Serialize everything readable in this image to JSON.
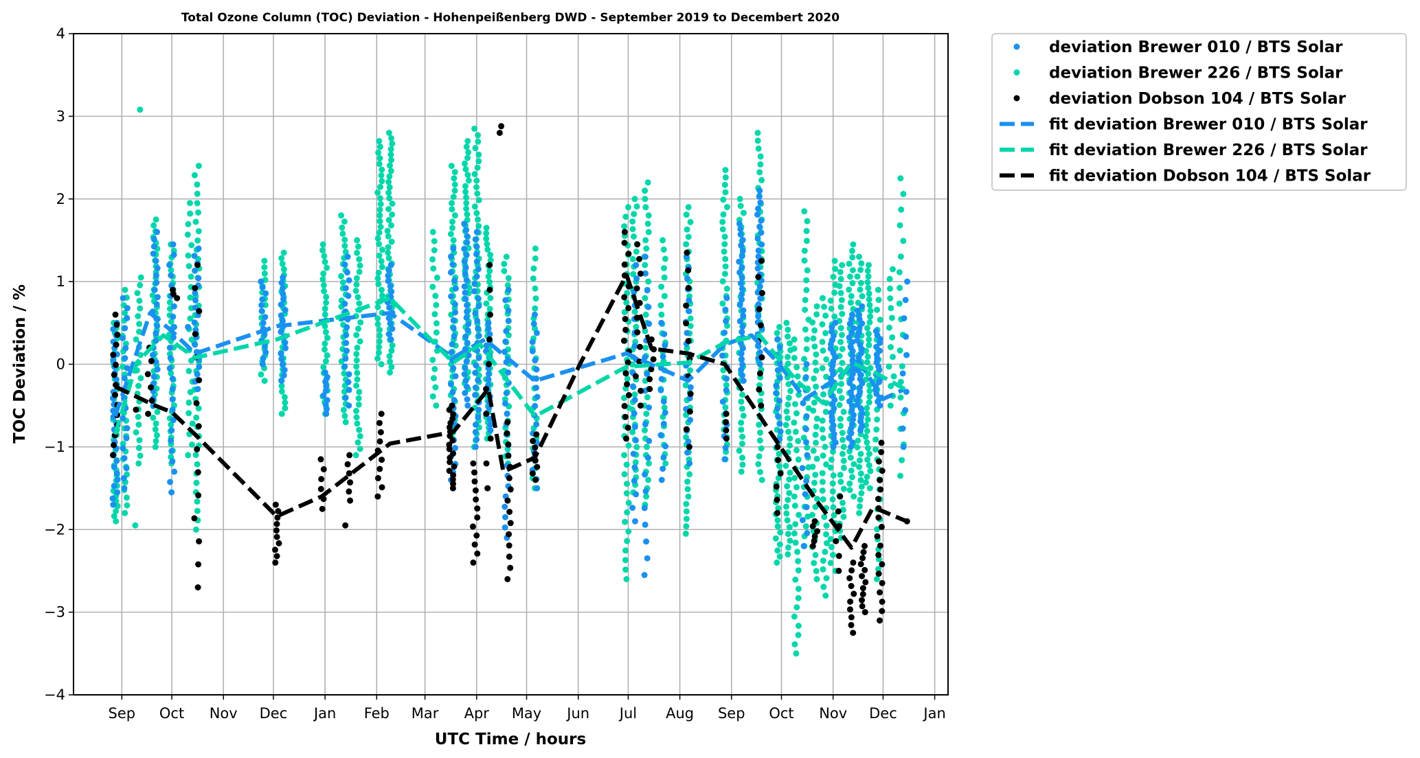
{
  "chart_data": {
    "type": "scatter",
    "title": "Total Ozone Column (TOC) Deviation - Hohenpeißenberg DWD - September 2019 to Decembert 2020",
    "xlabel": "UTC Time / hours",
    "ylabel": "TOC Deviation / %",
    "x_units": "days since 2019-09-01",
    "xlim": [
      -29,
      496
    ],
    "ylim": [
      -4,
      4
    ],
    "grid": true,
    "legend_position": "outside-top-right",
    "yticks": [
      4,
      3,
      2,
      1,
      0,
      -1,
      -2,
      -3,
      -4
    ],
    "ytick_labels": [
      "4",
      "3",
      "2",
      "1",
      "0",
      "−1",
      "−2",
      "−3",
      "−4"
    ],
    "xticks": [
      0,
      30,
      61,
      91,
      122,
      153,
      182,
      213,
      243,
      274,
      304,
      335,
      366,
      396,
      427,
      457,
      488
    ],
    "xtick_labels": [
      "Sep",
      "Oct",
      "Nov",
      "Dec",
      "Jan",
      "Feb",
      "Mar",
      "Apr",
      "May",
      "Jun",
      "Jul",
      "Aug",
      "Sep",
      "Oct",
      "Nov",
      "Dec",
      "Jan"
    ],
    "series": [
      {
        "name": "deviation Brewer 226 / BTS Solar",
        "kind": "scatter",
        "color": "#00d6aa",
        "clusters_day_min_max_count": [
          [
            -4,
            -1.9,
            0.5,
            40
          ],
          [
            2,
            -1.8,
            0.9,
            30
          ],
          [
            10,
            -1.2,
            1.05,
            25
          ],
          [
            11,
            3.08,
            3.08,
            1
          ],
          [
            9,
            -1.95,
            -1.95,
            1
          ],
          [
            20,
            -1.0,
            1.75,
            40
          ],
          [
            30,
            -1.2,
            1.45,
            35
          ],
          [
            41,
            -1.1,
            1.95,
            25
          ],
          [
            45,
            -2.0,
            2.4,
            40
          ],
          [
            85,
            -0.2,
            1.25,
            20
          ],
          [
            97,
            -0.6,
            1.35,
            30
          ],
          [
            122,
            -0.6,
            1.45,
            30
          ],
          [
            133,
            -0.7,
            1.8,
            35
          ],
          [
            142,
            -1.1,
            1.5,
            35
          ],
          [
            155,
            0.0,
            2.7,
            40
          ],
          [
            161,
            -0.1,
            2.8,
            45
          ],
          [
            188,
            -0.5,
            1.6,
            20
          ],
          [
            199,
            -0.9,
            2.4,
            45
          ],
          [
            207,
            -0.3,
            2.7,
            45
          ],
          [
            213,
            -1.0,
            2.85,
            50
          ],
          [
            220,
            -0.9,
            1.65,
            40
          ],
          [
            231,
            -1.2,
            1.3,
            30
          ],
          [
            248,
            -1.5,
            1.4,
            25
          ],
          [
            303,
            -2.6,
            1.9,
            40
          ],
          [
            308,
            -1.55,
            2.0,
            40
          ],
          [
            315,
            -1.7,
            2.2,
            40
          ],
          [
            325,
            -1.2,
            1.5,
            25
          ],
          [
            340,
            -2.05,
            1.9,
            45
          ],
          [
            362,
            -1.15,
            2.35,
            40
          ],
          [
            372,
            -1.3,
            2.0,
            40
          ],
          [
            383,
            -1.4,
            2.8,
            45
          ],
          [
            394,
            -2.4,
            0.45,
            40
          ],
          [
            400,
            -2.3,
            0.5,
            35
          ],
          [
            405,
            -3.5,
            0.3,
            35
          ],
          [
            411,
            -2.2,
            1.85,
            35
          ],
          [
            416,
            -2.6,
            0.7,
            35
          ],
          [
            422,
            -2.8,
            0.8,
            35
          ],
          [
            427,
            -2.5,
            1.25,
            40
          ],
          [
            432,
            -2.1,
            1.2,
            40
          ],
          [
            438,
            -1.6,
            1.45,
            40
          ],
          [
            443,
            -1.8,
            1.3,
            40
          ],
          [
            448,
            -1.5,
            1.2,
            40
          ],
          [
            454,
            -2.6,
            0.9,
            30
          ],
          [
            462,
            -0.5,
            1.15,
            15
          ],
          [
            468,
            -1.35,
            2.25,
            20
          ]
        ]
      },
      {
        "name": "deviation Brewer 010 / BTS Solar",
        "kind": "scatter",
        "color": "#1a90f0",
        "clusters_day_min_max_count": [
          [
            -4,
            -1.7,
            0.5,
            30
          ],
          [
            2,
            -1.5,
            0.8,
            20
          ],
          [
            20,
            -0.5,
            1.6,
            25
          ],
          [
            30,
            -1.55,
            1.45,
            25
          ],
          [
            41,
            0.45,
            0.45,
            1
          ],
          [
            45,
            -0.3,
            1.4,
            20
          ],
          [
            85,
            0.0,
            1.0,
            15
          ],
          [
            97,
            -0.2,
            1.05,
            20
          ],
          [
            122,
            -0.6,
            -0.1,
            10
          ],
          [
            135,
            -0.5,
            1.3,
            20
          ],
          [
            161,
            0.3,
            1.2,
            15
          ],
          [
            199,
            -1.4,
            1.4,
            30
          ],
          [
            207,
            -0.5,
            1.7,
            30
          ],
          [
            213,
            -1.0,
            1.6,
            30
          ],
          [
            220,
            -0.8,
            0.5,
            20
          ],
          [
            231,
            -2.1,
            0.9,
            25
          ],
          [
            248,
            -1.5,
            0.6,
            20
          ],
          [
            308,
            -1.9,
            1.2,
            20
          ],
          [
            315,
            -2.55,
            1.3,
            20
          ],
          [
            325,
            -1.4,
            0.5,
            15
          ],
          [
            340,
            -1.2,
            1.3,
            20
          ],
          [
            362,
            -1.15,
            0.8,
            15
          ],
          [
            372,
            -0.2,
            1.7,
            30
          ],
          [
            383,
            0.0,
            2.1,
            30
          ],
          [
            394,
            -1.0,
            0.3,
            15
          ],
          [
            410,
            -2.2,
            0.0,
            15
          ],
          [
            427,
            -1.0,
            0.5,
            30
          ],
          [
            438,
            -1.0,
            0.6,
            30
          ],
          [
            443,
            -0.8,
            0.7,
            30
          ],
          [
            454,
            -0.5,
            0.4,
            20
          ],
          [
            470,
            -1.0,
            1.0,
            10
          ]
        ]
      },
      {
        "name": "deviation Dobson 104 / BTS Solar",
        "kind": "scatter",
        "color": "#000000",
        "clusters_day_min_max_count": [
          [
            -4,
            -1.1,
            0.6,
            15
          ],
          [
            9,
            -0.55,
            -0.55,
            1
          ],
          [
            17,
            -0.6,
            0.2,
            6
          ],
          [
            32,
            0.8,
            0.9,
            3
          ],
          [
            45,
            -2.7,
            1.2,
            15
          ],
          [
            93,
            -2.4,
            -1.7,
            10
          ],
          [
            120,
            -1.75,
            -1.15,
            6
          ],
          [
            135,
            -1.95,
            -1.95,
            1
          ],
          [
            137,
            -1.65,
            -1.1,
            6
          ],
          [
            155,
            -1.6,
            -0.6,
            10
          ],
          [
            198,
            -1.5,
            -0.5,
            20
          ],
          [
            212,
            -2.4,
            -1.2,
            12
          ],
          [
            220,
            -1.5,
            1.2,
            10
          ],
          [
            228,
            2.8,
            2.88,
            2
          ],
          [
            232,
            -2.6,
            -0.7,
            15
          ],
          [
            248,
            -1.4,
            -0.85,
            8
          ],
          [
            303,
            -0.9,
            1.6,
            20
          ],
          [
            310,
            -0.5,
            1.45,
            12
          ],
          [
            318,
            -0.3,
            0.3,
            6
          ],
          [
            340,
            -1.0,
            1.35,
            12
          ],
          [
            362,
            -0.9,
            -0.6,
            4
          ],
          [
            383,
            -0.5,
            1.25,
            10
          ],
          [
            394,
            -1.8,
            -1.0,
            6
          ],
          [
            416,
            -2.2,
            -1.9,
            6
          ],
          [
            430,
            -2.5,
            -1.6,
            6
          ],
          [
            438,
            -3.25,
            -2.4,
            10
          ],
          [
            445,
            -3.0,
            -2.2,
            12
          ],
          [
            455,
            -3.1,
            -0.95,
            20
          ],
          [
            470,
            -1.9,
            -1.9,
            1
          ]
        ]
      },
      {
        "name": "fit deviation Brewer 010 / BTS Solar",
        "kind": "line",
        "color": "#1a90f0",
        "points": [
          [
            -4,
            -0.63
          ],
          [
            17,
            0.62
          ],
          [
            30,
            0.4
          ],
          [
            44,
            0.13
          ],
          [
            93,
            0.46
          ],
          [
            161,
            0.62
          ],
          [
            199,
            0.08
          ],
          [
            218,
            0.3
          ],
          [
            248,
            -0.2
          ],
          [
            303,
            0.13
          ],
          [
            340,
            -0.2
          ],
          [
            362,
            0.24
          ],
          [
            378,
            0.35
          ],
          [
            394,
            0.02
          ],
          [
            410,
            -0.42
          ],
          [
            427,
            -0.2
          ],
          [
            443,
            0.02
          ],
          [
            457,
            -0.42
          ],
          [
            470,
            -0.3
          ]
        ]
      },
      {
        "name": "fit deviation Brewer 226 / BTS Solar",
        "kind": "line",
        "color": "#00d6aa",
        "points": [
          [
            -4,
            -0.85
          ],
          [
            9,
            0.02
          ],
          [
            25,
            0.35
          ],
          [
            44,
            0.08
          ],
          [
            93,
            0.3
          ],
          [
            161,
            0.8
          ],
          [
            199,
            0.02
          ],
          [
            215,
            0.24
          ],
          [
            248,
            -0.63
          ],
          [
            303,
            -0.03
          ],
          [
            340,
            0.02
          ],
          [
            362,
            0.26
          ],
          [
            383,
            0.35
          ],
          [
            405,
            -0.2
          ],
          [
            421,
            -0.47
          ],
          [
            438,
            0.02
          ],
          [
            451,
            -0.09
          ],
          [
            470,
            -0.3
          ]
        ]
      },
      {
        "name": "fit deviation Dobson 104 / BTS Solar",
        "kind": "line",
        "color": "#000000",
        "points": [
          [
            -4,
            -0.27
          ],
          [
            20,
            -0.5
          ],
          [
            30,
            -0.58
          ],
          [
            44,
            -0.85
          ],
          [
            93,
            -1.84
          ],
          [
            120,
            -1.6
          ],
          [
            161,
            -0.96
          ],
          [
            199,
            -0.82
          ],
          [
            220,
            -0.3
          ],
          [
            229,
            -1.3
          ],
          [
            248,
            -1.13
          ],
          [
            275,
            0.0
          ],
          [
            303,
            1.08
          ],
          [
            318,
            0.19
          ],
          [
            340,
            0.13
          ],
          [
            362,
            0.0
          ],
          [
            394,
            -0.96
          ],
          [
            416,
            -1.62
          ],
          [
            438,
            -2.22
          ],
          [
            451,
            -1.73
          ],
          [
            470,
            -1.89
          ]
        ]
      }
    ],
    "legend": [
      "deviation Brewer 010 / BTS Solar",
      "deviation Brewer 226 / BTS Solar",
      "deviation Dobson 104 / BTS Solar",
      "fit deviation Brewer 010 / BTS Solar",
      "fit deviation Brewer 226 / BTS Solar",
      "fit deviation Dobson 104 / BTS Solar"
    ],
    "legend_colors": [
      "#1a90f0",
      "#00d6aa",
      "#000000",
      "#1a90f0",
      "#00d6aa",
      "#000000"
    ]
  }
}
